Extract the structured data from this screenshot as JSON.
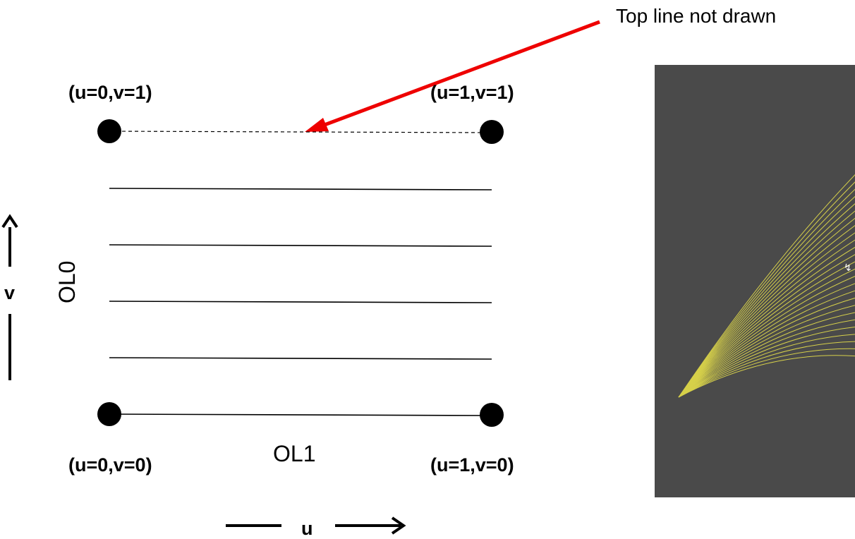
{
  "diagram": {
    "callout_text": "Top line not drawn",
    "corners": {
      "top_left": "(u=0,v=1)",
      "top_right": "(u=1,v=1)",
      "bottom_left": "(u=0,v=0)",
      "bottom_right": "(u=1,v=0)"
    },
    "edge_labels": {
      "left": "OL0",
      "bottom": "OL1"
    },
    "axes": {
      "u": "u",
      "v": "v"
    },
    "colors": {
      "ink": "#000000",
      "callout_arrow": "#ee0000",
      "render_background": "#4a4a4a",
      "render_curves": "#d6d04a"
    }
  }
}
